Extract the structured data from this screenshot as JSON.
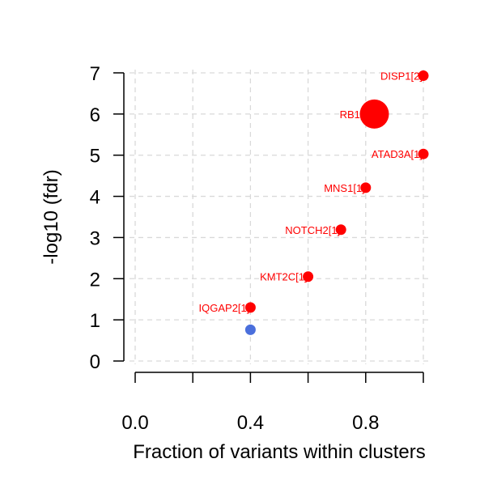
{
  "chart_data": {
    "type": "scatter",
    "title": "",
    "xlabel": "Fraction of variants within clusters",
    "ylabel": "-log10 (fdr)",
    "xlim": [
      0.0,
      1.0
    ],
    "ylim": [
      0,
      7
    ],
    "x_ticks": [
      0.0,
      0.2,
      0.4,
      0.6,
      0.8,
      1.0
    ],
    "x_tick_labels": [
      "0.0",
      "",
      "0.4",
      "",
      "0.8",
      ""
    ],
    "y_ticks": [
      0,
      1,
      2,
      3,
      4,
      5,
      6,
      7
    ],
    "y_tick_labels": [
      "0",
      "1",
      "2",
      "3",
      "4",
      "5",
      "6",
      "7"
    ],
    "grid": true,
    "legend": "none",
    "colors": {
      "significant": "#ff0000",
      "non_significant": "#4a6fdc",
      "grid": "#d9d9d9"
    },
    "points": [
      {
        "label": "DISP1[2]",
        "x": 1.0,
        "y": 6.93,
        "size": "small",
        "significant": true
      },
      {
        "label": "RB1[",
        "x": 0.83,
        "y": 6.0,
        "size": "large",
        "significant": true
      },
      {
        "label": "ATAD3A[1]",
        "x": 1.0,
        "y": 5.03,
        "size": "small",
        "significant": true
      },
      {
        "label": "MNS1[1]",
        "x": 0.8,
        "y": 4.21,
        "size": "small",
        "significant": true
      },
      {
        "label": "NOTCH2[1]",
        "x": 0.714,
        "y": 3.19,
        "size": "small",
        "significant": true
      },
      {
        "label": "KMT2C[1]",
        "x": 0.6,
        "y": 2.05,
        "size": "small",
        "significant": true
      },
      {
        "label": "IQGAP2[1]",
        "x": 0.4,
        "y": 1.3,
        "size": "small",
        "significant": true
      },
      {
        "label": "",
        "x": 0.4,
        "y": 0.76,
        "size": "small",
        "significant": false
      }
    ]
  }
}
